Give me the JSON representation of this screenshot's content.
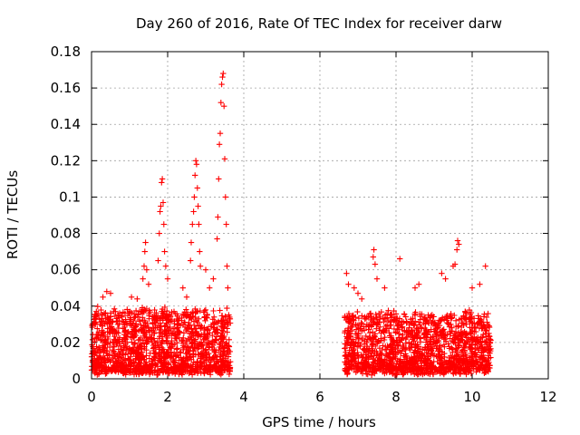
{
  "chart_data": {
    "type": "scatter",
    "title": "Day 260 of 2016, Rate Of TEC Index for receiver darw",
    "xlabel": "GPS time / hours",
    "ylabel": "ROTI / TECUs",
    "xlim": [
      0,
      12
    ],
    "ylim": [
      0,
      0.18
    ],
    "x_ticks": [
      0,
      2,
      4,
      6,
      8,
      10,
      12
    ],
    "x_tick_labels": [
      "0",
      "2",
      "4",
      "6",
      "8",
      "10",
      "12"
    ],
    "y_ticks": [
      0,
      0.02,
      0.04,
      0.06,
      0.08,
      0.1,
      0.12,
      0.14,
      0.16,
      0.18
    ],
    "y_tick_labels": [
      "0",
      "0.02",
      "0.04",
      "0.06",
      "0.08",
      "0.1",
      "0.12",
      "0.14",
      "0.16",
      "0.18"
    ],
    "grid": true,
    "marker": "+",
    "series": [
      {
        "name": "ROTI",
        "color": "#ff0000",
        "dense_bands": [
          {
            "x_range": [
              0.0,
              3.65
            ],
            "y_range": [
              0.004,
              0.038
            ],
            "count": 1500
          },
          {
            "x_range": [
              6.65,
              10.5
            ],
            "y_range": [
              0.004,
              0.036
            ],
            "count": 1500
          }
        ],
        "peaks": [
          {
            "x": 0.3,
            "y": 0.045
          },
          {
            "x": 0.4,
            "y": 0.048
          },
          {
            "x": 0.5,
            "y": 0.047
          },
          {
            "x": 1.05,
            "y": 0.045
          },
          {
            "x": 1.2,
            "y": 0.044
          },
          {
            "x": 1.35,
            "y": 0.055
          },
          {
            "x": 1.38,
            "y": 0.062
          },
          {
            "x": 1.4,
            "y": 0.07
          },
          {
            "x": 1.42,
            "y": 0.075
          },
          {
            "x": 1.45,
            "y": 0.06
          },
          {
            "x": 1.5,
            "y": 0.052
          },
          {
            "x": 1.75,
            "y": 0.065
          },
          {
            "x": 1.78,
            "y": 0.08
          },
          {
            "x": 1.8,
            "y": 0.092
          },
          {
            "x": 1.82,
            "y": 0.095
          },
          {
            "x": 1.84,
            "y": 0.108
          },
          {
            "x": 1.86,
            "y": 0.11
          },
          {
            "x": 1.88,
            "y": 0.097
          },
          {
            "x": 1.9,
            "y": 0.085
          },
          {
            "x": 1.92,
            "y": 0.07
          },
          {
            "x": 1.95,
            "y": 0.062
          },
          {
            "x": 2.0,
            "y": 0.055
          },
          {
            "x": 2.4,
            "y": 0.05
          },
          {
            "x": 2.5,
            "y": 0.045
          },
          {
            "x": 2.6,
            "y": 0.065
          },
          {
            "x": 2.62,
            "y": 0.075
          },
          {
            "x": 2.65,
            "y": 0.085
          },
          {
            "x": 2.68,
            "y": 0.092
          },
          {
            "x": 2.7,
            "y": 0.1
          },
          {
            "x": 2.72,
            "y": 0.112
          },
          {
            "x": 2.74,
            "y": 0.12
          },
          {
            "x": 2.76,
            "y": 0.118
          },
          {
            "x": 2.78,
            "y": 0.105
          },
          {
            "x": 2.8,
            "y": 0.095
          },
          {
            "x": 2.82,
            "y": 0.085
          },
          {
            "x": 2.84,
            "y": 0.07
          },
          {
            "x": 2.86,
            "y": 0.062
          },
          {
            "x": 3.0,
            "y": 0.06
          },
          {
            "x": 3.1,
            "y": 0.05
          },
          {
            "x": 3.2,
            "y": 0.055
          },
          {
            "x": 3.3,
            "y": 0.077
          },
          {
            "x": 3.32,
            "y": 0.089
          },
          {
            "x": 3.34,
            "y": 0.11
          },
          {
            "x": 3.36,
            "y": 0.129
          },
          {
            "x": 3.38,
            "y": 0.135
          },
          {
            "x": 3.4,
            "y": 0.152
          },
          {
            "x": 3.42,
            "y": 0.162
          },
          {
            "x": 3.44,
            "y": 0.166
          },
          {
            "x": 3.46,
            "y": 0.168
          },
          {
            "x": 3.48,
            "y": 0.15
          },
          {
            "x": 3.5,
            "y": 0.121
          },
          {
            "x": 3.52,
            "y": 0.1
          },
          {
            "x": 3.54,
            "y": 0.085
          },
          {
            "x": 3.56,
            "y": 0.062
          },
          {
            "x": 3.58,
            "y": 0.05
          },
          {
            "x": 6.7,
            "y": 0.058
          },
          {
            "x": 6.75,
            "y": 0.052
          },
          {
            "x": 6.9,
            "y": 0.05
          },
          {
            "x": 7.0,
            "y": 0.047
          },
          {
            "x": 7.1,
            "y": 0.044
          },
          {
            "x": 7.4,
            "y": 0.067
          },
          {
            "x": 7.42,
            "y": 0.071
          },
          {
            "x": 7.45,
            "y": 0.063
          },
          {
            "x": 7.5,
            "y": 0.055
          },
          {
            "x": 7.7,
            "y": 0.05
          },
          {
            "x": 8.1,
            "y": 0.066
          },
          {
            "x": 8.5,
            "y": 0.05
          },
          {
            "x": 8.6,
            "y": 0.052
          },
          {
            "x": 9.2,
            "y": 0.058
          },
          {
            "x": 9.3,
            "y": 0.055
          },
          {
            "x": 9.5,
            "y": 0.062
          },
          {
            "x": 9.55,
            "y": 0.063
          },
          {
            "x": 9.6,
            "y": 0.071
          },
          {
            "x": 9.62,
            "y": 0.076
          },
          {
            "x": 9.65,
            "y": 0.074
          },
          {
            "x": 10.0,
            "y": 0.05
          },
          {
            "x": 10.2,
            "y": 0.052
          },
          {
            "x": 10.35,
            "y": 0.062
          }
        ]
      }
    ]
  }
}
